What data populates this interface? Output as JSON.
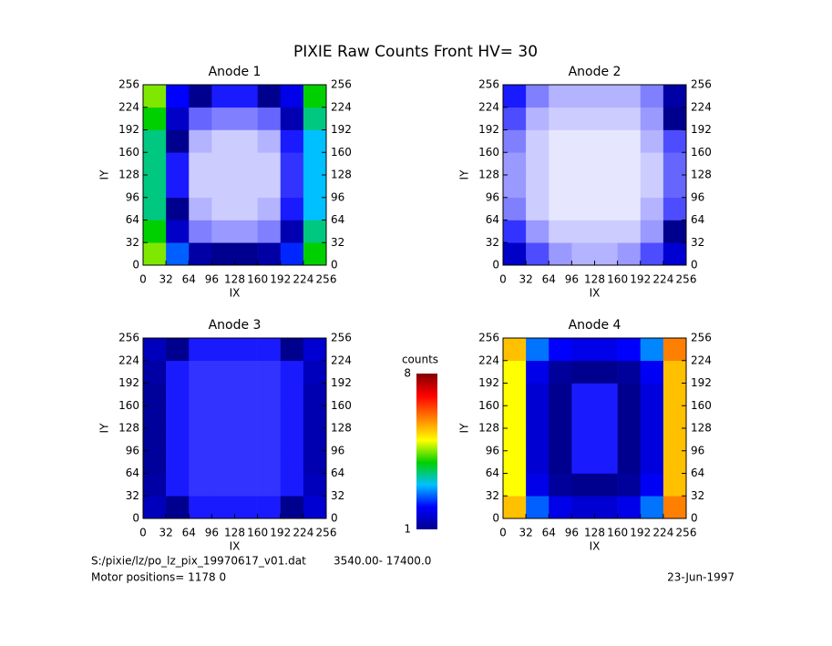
{
  "title": "PIXIE Raw Counts Front HV= 30",
  "footer": {
    "file": "S:/pixie/lz/po_lz_pix_19970617_v01.dat",
    "range": "3540.00- 17400.0",
    "motor": "Motor positions= 1178 0",
    "date": "23-Jun-1997"
  },
  "colorbar": {
    "label": "counts",
    "lim": [
      1,
      8
    ],
    "ticks": [
      1,
      8
    ],
    "colors": [
      "#00008f",
      "#0000ff",
      "#00c0ff",
      "#00d000",
      "#ffff00",
      "#ff8000",
      "#ff0000",
      "#800000"
    ]
  },
  "chart_data": [
    {
      "type": "heatmap",
      "title": "Anode 1",
      "xlabel": "IX",
      "ylabel": "IY",
      "xlim": [
        0,
        256
      ],
      "ylim": [
        0,
        256
      ],
      "xticks": [
        0,
        32,
        64,
        96,
        128,
        160,
        192,
        224,
        256
      ],
      "yticks": [
        0,
        32,
        64,
        96,
        128,
        160,
        192,
        224,
        256
      ],
      "values": [
        [
          4.5,
          2.5,
          1.2,
          1,
          1,
          1.2,
          2.2,
          4
        ],
        [
          4,
          1.5,
          0.5,
          0.4,
          0.4,
          0.5,
          1.3,
          3.5
        ],
        [
          3.5,
          1,
          0.3,
          0.2,
          0.2,
          0.3,
          0.9,
          3
        ],
        [
          3.5,
          0.9,
          0.2,
          0.2,
          0.2,
          0.2,
          0.8,
          3
        ],
        [
          3.5,
          0.9,
          0.2,
          0.2,
          0.2,
          0.2,
          0.8,
          3
        ],
        [
          3.5,
          1,
          0.3,
          0.2,
          0.2,
          0.3,
          0.9,
          3
        ],
        [
          4,
          1.5,
          0.6,
          0.5,
          0.5,
          0.6,
          1.3,
          3.5
        ],
        [
          4.5,
          2,
          1,
          0.9,
          0.9,
          1,
          1.8,
          4
        ]
      ]
    },
    {
      "type": "heatmap",
      "title": "Anode 2",
      "xlabel": "IX",
      "ylabel": "IY",
      "xlim": [
        0,
        256
      ],
      "ylim": [
        0,
        256
      ],
      "xticks": [
        0,
        32,
        64,
        96,
        128,
        160,
        192,
        224,
        256
      ],
      "yticks": [
        0,
        32,
        64,
        96,
        128,
        160,
        192,
        224,
        256
      ],
      "values": [
        [
          1.5,
          0.7,
          0.4,
          0.3,
          0.3,
          0.4,
          0.7,
          1.6
        ],
        [
          0.8,
          0.4,
          0.2,
          0.2,
          0.2,
          0.2,
          0.4,
          1
        ],
        [
          0.5,
          0.2,
          0.1,
          0.1,
          0.1,
          0.1,
          0.3,
          0.7
        ],
        [
          0.4,
          0.2,
          0.1,
          0.1,
          0.1,
          0.1,
          0.2,
          0.6
        ],
        [
          0.4,
          0.2,
          0.1,
          0.1,
          0.1,
          0.1,
          0.2,
          0.6
        ],
        [
          0.5,
          0.2,
          0.1,
          0.1,
          0.1,
          0.1,
          0.3,
          0.7
        ],
        [
          0.7,
          0.3,
          0.2,
          0.2,
          0.2,
          0.2,
          0.4,
          1
        ],
        [
          0.9,
          0.5,
          0.3,
          0.3,
          0.3,
          0.3,
          0.5,
          1.2
        ]
      ]
    },
    {
      "type": "heatmap",
      "title": "Anode 3",
      "xlabel": "IX",
      "ylabel": "IY",
      "xlim": [
        0,
        256
      ],
      "ylim": [
        0,
        256
      ],
      "xticks": [
        0,
        32,
        64,
        96,
        128,
        160,
        192,
        224,
        256
      ],
      "yticks": [
        0,
        32,
        64,
        96,
        128,
        160,
        192,
        224,
        256
      ],
      "values": [
        [
          1.4,
          1,
          0.9,
          0.9,
          0.9,
          0.9,
          1,
          1.6
        ],
        [
          1.2,
          0.9,
          0.8,
          0.8,
          0.8,
          0.8,
          0.9,
          1.4
        ],
        [
          1.1,
          0.9,
          0.8,
          0.8,
          0.8,
          0.8,
          0.9,
          1.3
        ],
        [
          1.1,
          0.9,
          0.8,
          0.8,
          0.8,
          0.8,
          0.9,
          1.3
        ],
        [
          1.1,
          0.9,
          0.8,
          0.8,
          0.8,
          0.8,
          0.9,
          1.3
        ],
        [
          1.1,
          0.9,
          0.8,
          0.8,
          0.8,
          0.8,
          0.9,
          1.3
        ],
        [
          1.2,
          0.9,
          0.8,
          0.8,
          0.8,
          0.8,
          0.9,
          1.4
        ],
        [
          1.4,
          1,
          0.9,
          0.9,
          0.9,
          0.9,
          1,
          1.6
        ]
      ]
    },
    {
      "type": "heatmap",
      "title": "Anode 4",
      "xlabel": "IX",
      "ylabel": "IY",
      "xlim": [
        0,
        256
      ],
      "ylim": [
        0,
        256
      ],
      "xticks": [
        0,
        32,
        64,
        96,
        128,
        160,
        192,
        224,
        256
      ],
      "yticks": [
        0,
        32,
        64,
        96,
        128,
        160,
        192,
        224,
        256
      ],
      "values": [
        [
          5.5,
          2.5,
          1.8,
          1.6,
          1.6,
          1.8,
          2.6,
          6
        ],
        [
          5,
          1.8,
          1.1,
          1,
          1,
          1.1,
          1.9,
          5.5
        ],
        [
          5,
          1.6,
          1,
          0.9,
          0.9,
          1,
          1.7,
          5.5
        ],
        [
          5,
          1.6,
          1,
          0.9,
          0.9,
          1,
          1.7,
          5.5
        ],
        [
          5,
          1.6,
          1,
          0.9,
          0.9,
          1,
          1.7,
          5.5
        ],
        [
          5,
          1.6,
          1,
          0.9,
          0.9,
          1,
          1.7,
          5.5
        ],
        [
          5,
          1.8,
          1.1,
          1,
          1,
          1.1,
          1.9,
          5.5
        ],
        [
          5.5,
          2.6,
          2,
          1.8,
          1.8,
          2,
          2.7,
          6
        ]
      ]
    }
  ]
}
